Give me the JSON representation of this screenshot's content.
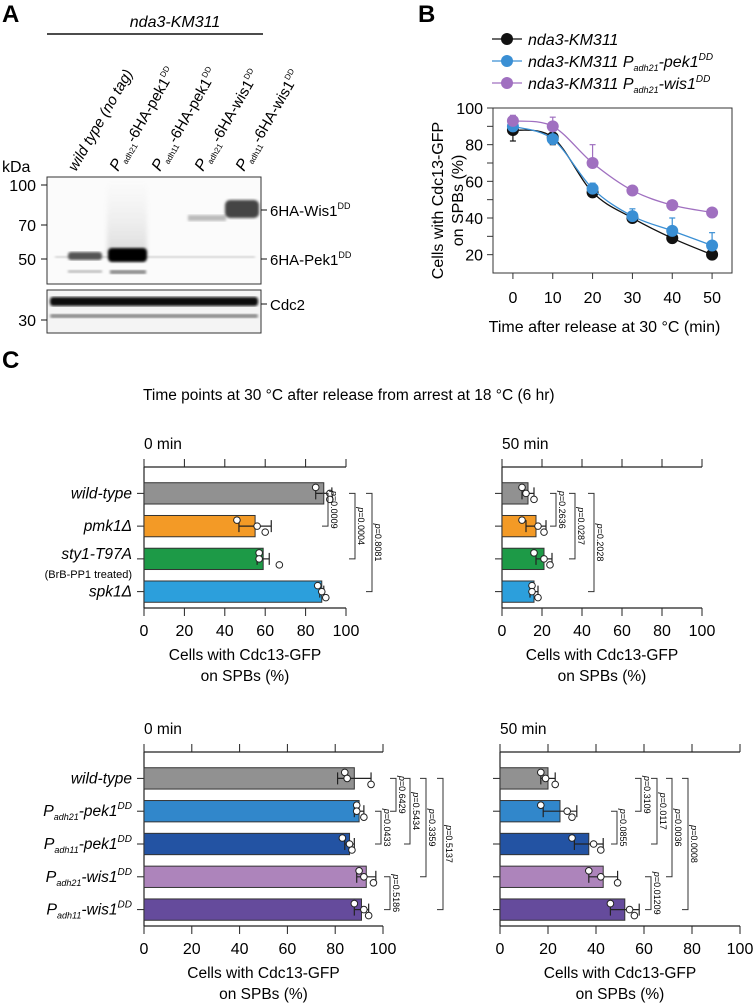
{
  "panels": {
    "a": "A",
    "b": "B",
    "c": "C"
  },
  "panel_a": {
    "strain_header": "nda3-KM311",
    "lanes": [
      {
        "prefix": "",
        "sub": "",
        "main": "wild type (no tag)",
        "sup": ""
      },
      {
        "prefix": "P",
        "sub": "adh21",
        "main": "-6HA-pek1",
        "sup": "DD"
      },
      {
        "prefix": "P",
        "sub": "adh11",
        "main": "-6HA-pek1",
        "sup": "DD"
      },
      {
        "prefix": "P",
        "sub": "adh21",
        "main": "-6HA-wis1",
        "sup": "DD"
      },
      {
        "prefix": "P",
        "sub": "adh11",
        "main": "-6HA-wis1",
        "sup": "DD"
      }
    ],
    "kda_label": "kDa",
    "markers_top": [
      "100",
      "70",
      "50"
    ],
    "markers_bottom": [
      "30"
    ],
    "band_labels": [
      {
        "main": "6HA-Wis1",
        "sup": "DD"
      },
      {
        "main": "6HA-Pek1",
        "sup": "DD"
      },
      {
        "main": "Cdc2",
        "sup": ""
      }
    ]
  },
  "chart_data": [
    {
      "id": "B",
      "type": "line",
      "title": "",
      "xlabel": "Time after release at 30 °C (min)",
      "ylabel_lines": [
        "Cells with Cdc13-GFP",
        "on SPBs (%)"
      ],
      "x": [
        0,
        10,
        20,
        30,
        40,
        50
      ],
      "xticks": [
        "0",
        "10",
        "20",
        "30",
        "40",
        "50"
      ],
      "yticks": [
        "20",
        "40",
        "60",
        "80",
        "100"
      ],
      "ylim": [
        10,
        100
      ],
      "xlim": [
        -5,
        55
      ],
      "legend_position": "top",
      "series": [
        {
          "name": "nda3-KM311",
          "name_parts": {
            "main": "nda3-KM311",
            "prefix": "",
            "sub": "",
            "suffix": "",
            "sup": ""
          },
          "color": "#111111",
          "values": [
            88,
            84,
            54,
            40,
            29,
            20
          ],
          "err": [
            6,
            4,
            2,
            2,
            1,
            2
          ]
        },
        {
          "name": "nda3-KM311 Padh21-pek1DD",
          "name_parts": {
            "main": "nda3-KM311 ",
            "prefix": "P",
            "sub": "adh21",
            "suffix": "-pek1",
            "sup": "DD"
          },
          "color": "#3a8fd4",
          "values": [
            90,
            83,
            56,
            41,
            33,
            25
          ],
          "err": [
            3,
            5,
            3,
            4,
            7,
            7
          ]
        },
        {
          "name": "nda3-KM311 Padh21-wis1DD",
          "name_parts": {
            "main": "nda3-KM311 ",
            "prefix": "P",
            "sub": "adh21",
            "suffix": "-wis1",
            "sup": "DD"
          },
          "color": "#a070c0",
          "values": [
            93,
            90,
            70,
            55,
            47,
            43
          ],
          "err": [
            3,
            5,
            10,
            2,
            1,
            1
          ]
        }
      ]
    },
    {
      "id": "C-top-0min",
      "type": "bar",
      "orientation": "horizontal",
      "title": "0 min",
      "xlabel_lines": [
        "Cells with Cdc13-GFP",
        "on SPBs (%)"
      ],
      "xlim": [
        0,
        100
      ],
      "xticks": [
        "0",
        "20",
        "40",
        "60",
        "80",
        "100"
      ],
      "categories": [
        {
          "main": "wild-type",
          "note": ""
        },
        {
          "main": "pmk1Δ",
          "note": ""
        },
        {
          "main": "sty1-T97A",
          "note": "(BrB-PP1 treated)"
        },
        {
          "main": "spk1Δ",
          "note": ""
        }
      ],
      "values": [
        89,
        55,
        59,
        88
      ],
      "err": [
        4,
        8,
        3,
        1
      ],
      "points": [
        [
          85,
          92,
          92
        ],
        [
          46,
          56,
          60
        ],
        [
          57,
          57,
          67
        ],
        [
          86,
          88,
          90
        ]
      ],
      "colors": [
        "#919191",
        "#f39a26",
        "#1d9a47",
        "#2c9fdc"
      ],
      "pvalues": [
        {
          "from": 0,
          "to": 1,
          "label": "p=0.0009"
        },
        {
          "from": 0,
          "to": 2,
          "label": "p=0.0004"
        },
        {
          "from": 0,
          "to": 3,
          "label": "p=0.8081"
        }
      ]
    },
    {
      "id": "C-top-50min",
      "type": "bar",
      "orientation": "horizontal",
      "title": "50 min",
      "xlabel_lines": [
        "Cells with Cdc13-GFP",
        "on SPBs (%)"
      ],
      "xlim": [
        0,
        100
      ],
      "xticks": [
        "0",
        "20",
        "40",
        "60",
        "80",
        "100"
      ],
      "categories": [
        {
          "main": "wild-type",
          "note": ""
        },
        {
          "main": "pmk1Δ",
          "note": ""
        },
        {
          "main": "sty1-T97A",
          "note": ""
        },
        {
          "main": "spk1Δ",
          "note": ""
        }
      ],
      "values": [
        13,
        17,
        21,
        16
      ],
      "err": [
        3,
        5,
        4,
        2
      ],
      "points": [
        [
          10,
          12,
          16
        ],
        [
          10,
          18,
          21
        ],
        [
          16,
          21,
          24
        ],
        [
          15,
          15,
          18
        ]
      ],
      "colors": [
        "#919191",
        "#f39a26",
        "#1d9a47",
        "#2c9fdc"
      ],
      "pvalues": [
        {
          "from": 0,
          "to": 1,
          "label": "p=0.2636"
        },
        {
          "from": 0,
          "to": 2,
          "label": "p=0.0287"
        },
        {
          "from": 0,
          "to": 3,
          "label": "p=0.2028"
        }
      ]
    },
    {
      "id": "C-bottom-0min",
      "type": "bar",
      "orientation": "horizontal",
      "title": "0 min",
      "xlabel_lines": [
        "Cells with Cdc13-GFP",
        "on SPBs (%)"
      ],
      "xlim": [
        0,
        100
      ],
      "xticks": [
        "0",
        "20",
        "40",
        "60",
        "80",
        "100"
      ],
      "categories": [
        {
          "main": "wild-type",
          "prefix": "",
          "sub": "",
          "sup": ""
        },
        {
          "main": "-pek1",
          "prefix": "P",
          "sub": "adh21",
          "sup": "DD"
        },
        {
          "main": "-pek1",
          "prefix": "P",
          "sub": "adh11",
          "sup": "DD"
        },
        {
          "main": "-wis1",
          "prefix": "P",
          "sub": "adh21",
          "sup": "DD"
        },
        {
          "main": "-wis1",
          "prefix": "P",
          "sub": "adh11",
          "sup": "DD"
        }
      ],
      "values": [
        88,
        90,
        86,
        93,
        91
      ],
      "err": [
        7,
        2,
        2,
        4,
        3
      ],
      "points": [
        [
          84,
          85,
          95
        ],
        [
          89,
          89,
          92
        ],
        [
          83,
          86,
          87
        ],
        [
          90,
          92,
          96
        ],
        [
          88,
          92,
          94
        ]
      ],
      "colors": [
        "#919191",
        "#3187cb",
        "#2353a3",
        "#ad84bb",
        "#654b9c"
      ],
      "pvalues": [
        {
          "from": 0,
          "to": 1,
          "label": "p=0.6429"
        },
        {
          "from": 1,
          "to": 2,
          "label": "p=0.0433"
        },
        {
          "from": 0,
          "to": 2,
          "label": "p=0.5434"
        },
        {
          "from": 0,
          "to": 3,
          "label": "p=0.3359"
        },
        {
          "from": 0,
          "to": 4,
          "label": "p=0.5137"
        },
        {
          "from": 3,
          "to": 4,
          "label": "p=0.5186"
        }
      ]
    },
    {
      "id": "C-bottom-50min",
      "type": "bar",
      "orientation": "horizontal",
      "title": "50 min",
      "xlabel_lines": [
        "Cells with Cdc13-GFP",
        "on SPBs (%)"
      ],
      "xlim": [
        0,
        100
      ],
      "xticks": [
        "0",
        "20",
        "40",
        "60",
        "80",
        "100"
      ],
      "categories": [
        {
          "main": "wild-type",
          "prefix": "",
          "sub": "",
          "sup": ""
        },
        {
          "main": "-pek1",
          "prefix": "P",
          "sub": "adh21",
          "sup": "DD"
        },
        {
          "main": "-pek1",
          "prefix": "P",
          "sub": "adh11",
          "sup": "DD"
        },
        {
          "main": "-wis1",
          "prefix": "P",
          "sub": "adh21",
          "sup": "DD"
        },
        {
          "main": "-wis1",
          "prefix": "P",
          "sub": "adh11",
          "sup": "DD"
        }
      ],
      "values": [
        20,
        25,
        37,
        43,
        52
      ],
      "err": [
        3,
        7,
        6,
        6,
        6
      ],
      "points": [
        [
          17,
          19,
          23
        ],
        [
          17,
          28,
          30
        ],
        [
          30,
          39,
          42
        ],
        [
          37,
          42,
          49
        ],
        [
          46,
          54,
          56
        ]
      ],
      "colors": [
        "#919191",
        "#3187cb",
        "#2353a3",
        "#ad84bb",
        "#654b9c"
      ],
      "pvalues": [
        {
          "from": 0,
          "to": 1,
          "label": "p=0.3109"
        },
        {
          "from": 1,
          "to": 2,
          "label": "p=0.0855"
        },
        {
          "from": 0,
          "to": 2,
          "label": "p=0.0117"
        },
        {
          "from": 0,
          "to": 3,
          "label": "p=0.0036"
        },
        {
          "from": 0,
          "to": 4,
          "label": "p=0.0008"
        },
        {
          "from": 3,
          "to": 4,
          "label": "p=0.01209"
        }
      ]
    }
  ],
  "panel_c": {
    "heading": "Time points at 30 °C after release from arrest at 18 °C (6 hr)"
  }
}
